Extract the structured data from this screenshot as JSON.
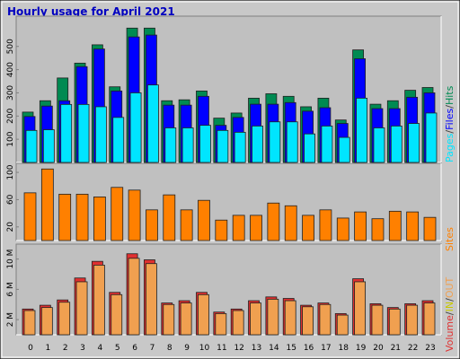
{
  "title": "Hourly usage for April 2021",
  "chart_data": [
    {
      "type": "bar",
      "legend_separator": "/",
      "series": [
        {
          "name": "Hits",
          "color": "#008a52",
          "values": [
            217,
            266,
            364,
            428,
            507,
            326,
            579,
            579,
            266,
            270,
            308,
            191,
            213,
            277,
            296,
            285,
            240,
            277,
            183,
            485,
            251,
            266,
            311,
            323
          ]
        },
        {
          "name": "Files",
          "color": "#0000ff",
          "values": [
            198,
            243,
            266,
            413,
            489,
            308,
            541,
            549,
            247,
            247,
            285,
            160,
            194,
            251,
            251,
            258,
            221,
            236,
            168,
            447,
            232,
            232,
            281,
            300
          ]
        },
        {
          "name": "Pages",
          "color": "#00e5ff",
          "values": [
            138,
            141,
            250,
            250,
            240,
            194,
            300,
            334,
            149,
            149,
            160,
            138,
            130,
            157,
            175,
            175,
            123,
            157,
            108,
            277,
            149,
            157,
            168,
            213
          ]
        }
      ],
      "ylim": [
        0,
        615
      ],
      "yticks": [
        100,
        200,
        300,
        400,
        500
      ]
    },
    {
      "type": "bar",
      "series": [
        {
          "name": "Sites",
          "color": "#ff8000",
          "values": [
            70,
            105,
            68,
            68,
            64,
            78,
            74,
            45,
            67,
            45,
            59,
            30,
            37,
            37,
            55,
            51,
            37,
            45,
            33,
            42,
            32,
            43,
            42,
            34
          ]
        }
      ],
      "ylim": [
        0,
        108
      ],
      "yticks": [
        20,
        60,
        100
      ]
    },
    {
      "type": "bar",
      "legend_separator": "/",
      "categories": [
        "0",
        "1",
        "2",
        "3",
        "4",
        "5",
        "6",
        "7",
        "8",
        "9",
        "10",
        "11",
        "12",
        "13",
        "14",
        "15",
        "16",
        "17",
        "18",
        "19",
        "20",
        "21",
        "22",
        "23"
      ],
      "series": [
        {
          "name": "Volume",
          "color": "#e03030",
          "values": [
            3.4,
            3.9,
            4.6,
            7.5,
            9.7,
            5.6,
            10.7,
            9.9,
            4.2,
            4.5,
            5.6,
            3.0,
            3.4,
            4.5,
            5.0,
            4.8,
            3.9,
            4.2,
            2.8,
            7.4,
            4.1,
            3.6,
            4.1,
            4.5
          ]
        },
        {
          "name": "IN",
          "color": "#c8c800",
          "values": [
            null,
            null,
            null,
            null,
            null,
            null,
            null,
            null,
            null,
            null,
            null,
            null,
            null,
            null,
            null,
            null,
            null,
            null,
            null,
            null,
            null,
            null,
            null,
            null
          ]
        },
        {
          "name": "OUT",
          "color": "#f0a050",
          "values": [
            3.2,
            3.6,
            4.3,
            7.0,
            9.2,
            5.3,
            10.1,
            9.4,
            4.0,
            4.2,
            5.3,
            2.8,
            3.2,
            4.2,
            4.7,
            4.5,
            3.7,
            4.0,
            2.6,
            7.0,
            3.9,
            3.4,
            3.9,
            4.2
          ]
        }
      ],
      "ylim": [
        0,
        11.5
      ],
      "yticks": [
        {
          "value": 2,
          "label": "2 M"
        },
        {
          "value": 6,
          "label": "6 M"
        },
        {
          "value": 10,
          "label": "10 M"
        }
      ]
    }
  ]
}
